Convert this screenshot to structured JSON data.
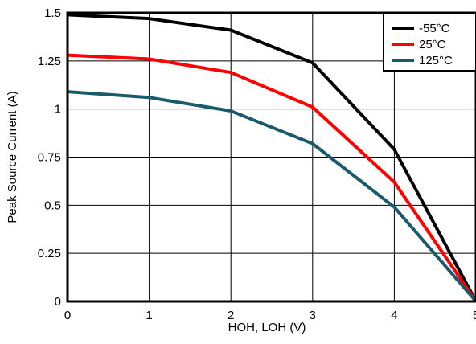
{
  "chart_data": {
    "type": "line",
    "title": "",
    "xlabel": "HOH, LOH (V)",
    "ylabel": "Peak Source Current (A)",
    "xlim": [
      0,
      5
    ],
    "ylim": [
      0,
      1.5
    ],
    "x_ticks": [
      "0",
      "1",
      "2",
      "3",
      "4",
      "5"
    ],
    "y_ticks": [
      "0",
      "0.25",
      "0.5",
      "0.75",
      "1",
      "1.25",
      "1.5"
    ],
    "grid": true,
    "legend_position": "top-right",
    "series": [
      {
        "name": "-55°C",
        "color": "#000000",
        "x": [
          0,
          1,
          2,
          3,
          4,
          5
        ],
        "y": [
          1.49,
          1.47,
          1.41,
          1.24,
          0.79,
          0.0
        ]
      },
      {
        "name": "25°C",
        "color": "#ff0000",
        "x": [
          0,
          1,
          2,
          3,
          4,
          5
        ],
        "y": [
          1.28,
          1.26,
          1.19,
          1.01,
          0.62,
          0.0
        ]
      },
      {
        "name": "125°C",
        "color": "#1a5a6b",
        "x": [
          0,
          1,
          2,
          3,
          4,
          5
        ],
        "y": [
          1.09,
          1.06,
          0.99,
          0.82,
          0.49,
          0.0
        ]
      }
    ]
  }
}
